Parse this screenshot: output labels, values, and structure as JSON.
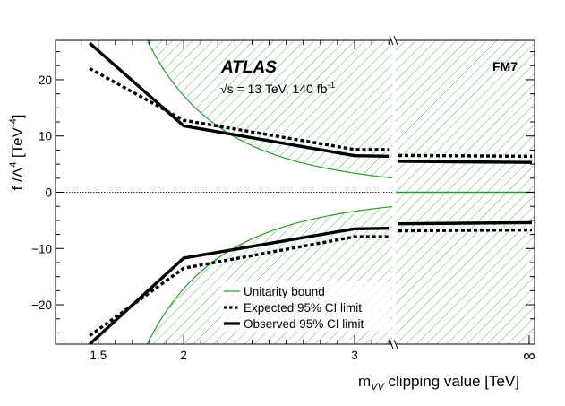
{
  "chart_data": {
    "type": "line",
    "title": "ATLAS",
    "energy_label": "√s = 13 TeV, 140 fb",
    "energy_superscript": "-1",
    "panel_label": "FM7",
    "xlabel_prefix": "m",
    "xlabel_subscript": "VV",
    "xlabel_suffix": " clipping value [TeV]",
    "ylabel_main": "f /Λ",
    "ylabel_sup": "4",
    "ylabel_unit": " [TeV",
    "ylabel_unit_sup": "-4",
    "ylabel_close": "]",
    "ylim": [
      -27,
      27
    ],
    "xlim": [
      1.25,
      3.22
    ],
    "x_ticks": [
      {
        "value": 1.5,
        "label": "1.5"
      },
      {
        "value": 2,
        "label": "2"
      },
      {
        "value": 3,
        "label": "3"
      }
    ],
    "x_infinity_label": "∞",
    "y_ticks": [
      {
        "value": 20,
        "label": "20"
      },
      {
        "value": 10,
        "label": "10"
      },
      {
        "value": 0,
        "label": "0"
      },
      {
        "value": -10,
        "label": "−10"
      },
      {
        "value": -20,
        "label": "−20"
      }
    ],
    "series": [
      {
        "name": "Observed 95% CI limit",
        "style": "solid",
        "color": "#000000",
        "x": [
          1.45,
          2.0,
          3.0,
          3.2
        ],
        "upper": [
          26.5,
          11.8,
          6.5,
          6.4
        ],
        "lower": [
          -27.0,
          -11.7,
          -6.5,
          -6.4
        ],
        "inf_upper": 5.3,
        "inf_lower": -5.4
      },
      {
        "name": "Expected 95% CI limit",
        "style": "dotted",
        "color": "#000000",
        "x": [
          1.45,
          2.0,
          3.0,
          3.2
        ],
        "upper": [
          22.0,
          12.8,
          7.6,
          7.6
        ],
        "lower": [
          -25.5,
          -13.5,
          -7.9,
          -7.9
        ],
        "inf_upper": 6.4,
        "inf_lower": -6.7
      }
    ],
    "unitarity": {
      "name": "Unitarity bound",
      "color": "#2e9a2e",
      "scale": 274.56,
      "power": 4,
      "x_min": 1.75,
      "x_max": 3.22
    },
    "legend": {
      "placement": "bottom-center",
      "entries": [
        "Unitarity bound",
        "Expected 95% CI limit",
        "Observed 95% CI limit"
      ]
    }
  }
}
